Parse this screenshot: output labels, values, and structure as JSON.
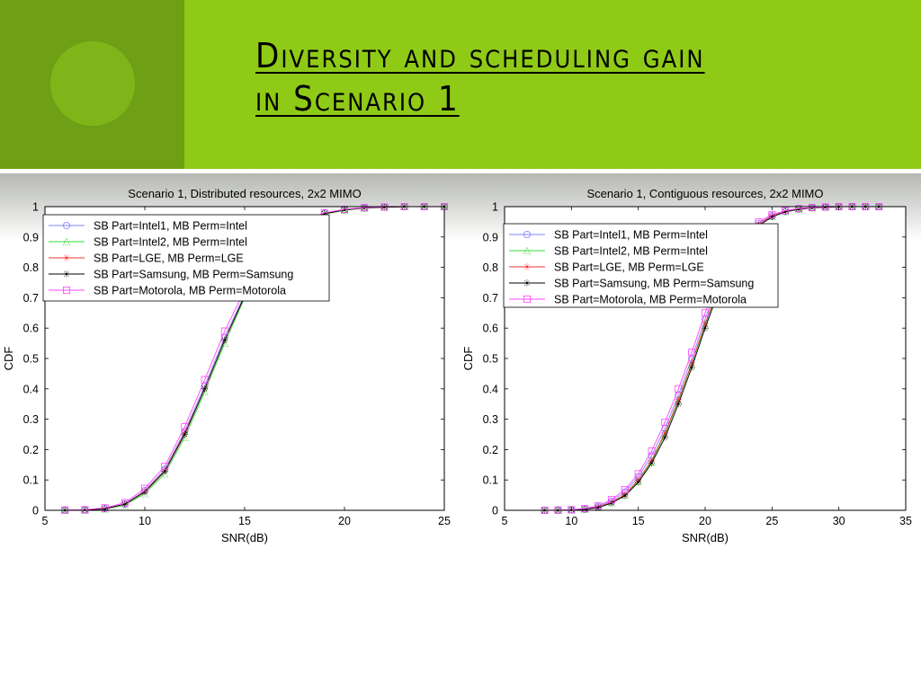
{
  "slide": {
    "title_line1": "Diversity and scheduling gain",
    "title_line2": "in Scenario 1"
  },
  "chart_data": [
    {
      "type": "line",
      "title": "Scenario 1, Distributed resources, 2x2 MIMO",
      "xlabel": "SNR(dB)",
      "ylabel": "CDF",
      "xlim": [
        5,
        25
      ],
      "ylim": [
        0,
        1
      ],
      "xticks": [
        5,
        10,
        15,
        20,
        25
      ],
      "yticks": [
        0,
        0.1,
        0.2,
        0.3,
        0.4,
        0.5,
        0.6,
        0.7,
        0.8,
        0.9,
        1
      ],
      "grid": false,
      "legend_position": "top-left",
      "series": [
        {
          "name": "SB Part=Intel1, MB Perm=Intel",
          "color": "#8080ff",
          "marker": "circle",
          "x": [
            6,
            7,
            8,
            9,
            10,
            11,
            12,
            13,
            14,
            15,
            16,
            17,
            18,
            19,
            20,
            21,
            22,
            23,
            24,
            25
          ],
          "y": [
            0,
            0.001,
            0.006,
            0.021,
            0.065,
            0.135,
            0.26,
            0.41,
            0.57,
            0.71,
            0.82,
            0.9,
            0.95,
            0.978,
            0.99,
            0.996,
            0.998,
            1,
            1,
            1
          ]
        },
        {
          "name": "SB Part=Intel2, MB Perm=Intel",
          "color": "#33dd33",
          "marker": "triangle",
          "x": [
            6,
            7,
            8,
            9,
            10,
            11,
            12,
            13,
            14,
            15,
            16,
            17,
            18,
            19,
            20,
            21,
            22,
            23,
            24,
            25
          ],
          "y": [
            0,
            0,
            0.004,
            0.017,
            0.055,
            0.12,
            0.24,
            0.39,
            0.55,
            0.7,
            0.81,
            0.89,
            0.945,
            0.975,
            0.988,
            0.995,
            0.998,
            1,
            1,
            1
          ]
        },
        {
          "name": "SB Part=LGE, MB Perm=LGE",
          "color": "#ee3333",
          "marker": "star",
          "x": [
            6,
            7,
            8,
            9,
            10,
            11,
            12,
            13,
            14,
            15,
            16,
            17,
            18,
            19,
            20,
            21,
            22,
            23,
            24,
            25
          ],
          "y": [
            0,
            0.001,
            0.005,
            0.02,
            0.062,
            0.13,
            0.255,
            0.4,
            0.56,
            0.705,
            0.815,
            0.895,
            0.948,
            0.977,
            0.989,
            0.996,
            0.998,
            1,
            1,
            1
          ]
        },
        {
          "name": "SB Part=Samsung, MB Perm=Samsung",
          "color": "#000000",
          "marker": "star",
          "x": [
            6,
            7,
            8,
            9,
            10,
            11,
            12,
            13,
            14,
            15,
            16,
            17,
            18,
            19,
            20,
            21,
            22,
            23,
            24,
            25
          ],
          "y": [
            0,
            0.001,
            0.005,
            0.02,
            0.06,
            0.128,
            0.25,
            0.4,
            0.56,
            0.705,
            0.815,
            0.895,
            0.948,
            0.977,
            0.989,
            0.996,
            0.998,
            1,
            1,
            1
          ]
        },
        {
          "name": "SB Part=Motorola, MB Perm=Motorola",
          "color": "#ff44ff",
          "marker": "square",
          "x": [
            6,
            7,
            8,
            9,
            10,
            11,
            12,
            13,
            14,
            15,
            16,
            17,
            18,
            19,
            20,
            21,
            22,
            23,
            24,
            25
          ],
          "y": [
            0.001,
            0.002,
            0.008,
            0.025,
            0.072,
            0.145,
            0.275,
            0.43,
            0.59,
            0.725,
            0.83,
            0.905,
            0.955,
            0.98,
            0.991,
            0.997,
            0.999,
            1,
            1,
            1
          ]
        }
      ]
    },
    {
      "type": "line",
      "title": "Scenario 1, Contiguous resources, 2x2 MIMO",
      "xlabel": "SNR(dB)",
      "ylabel": "CDF",
      "xlim": [
        5,
        35
      ],
      "ylim": [
        0,
        1
      ],
      "xticks": [
        5,
        10,
        15,
        20,
        25,
        30,
        35
      ],
      "yticks": [
        0,
        0.1,
        0.2,
        0.3,
        0.4,
        0.5,
        0.6,
        0.7,
        0.8,
        0.9,
        1
      ],
      "grid": false,
      "legend_position": "top-left",
      "series": [
        {
          "name": "SB Part=Intel1, MB Perm=Intel",
          "color": "#8080ff",
          "marker": "circle",
          "x": [
            8,
            9,
            10,
            11,
            12,
            13,
            14,
            15,
            16,
            17,
            18,
            19,
            20,
            21,
            22,
            23,
            24,
            25,
            26,
            27,
            28,
            29,
            30,
            31,
            32,
            33
          ],
          "y": [
            0,
            0,
            0.001,
            0.004,
            0.012,
            0.03,
            0.06,
            0.11,
            0.18,
            0.27,
            0.38,
            0.5,
            0.63,
            0.75,
            0.84,
            0.9,
            0.945,
            0.97,
            0.985,
            0.993,
            0.997,
            0.999,
            1,
            1,
            1,
            1
          ]
        },
        {
          "name": "SB Part=Intel2, MB Perm=Intel",
          "color": "#33dd33",
          "marker": "triangle",
          "x": [
            8,
            9,
            10,
            11,
            12,
            13,
            14,
            15,
            16,
            17,
            18,
            19,
            20,
            21,
            22,
            23,
            24,
            25,
            26,
            27,
            28,
            29,
            30,
            31,
            32,
            33
          ],
          "y": [
            0,
            0,
            0.001,
            0.003,
            0.01,
            0.025,
            0.05,
            0.095,
            0.16,
            0.25,
            0.36,
            0.48,
            0.61,
            0.73,
            0.83,
            0.895,
            0.94,
            0.968,
            0.984,
            0.992,
            0.996,
            0.998,
            1,
            1,
            1,
            1
          ]
        },
        {
          "name": "SB Part=LGE, MB Perm=LGE",
          "color": "#ee3333",
          "marker": "star",
          "x": [
            8,
            9,
            10,
            11,
            12,
            13,
            14,
            15,
            16,
            17,
            18,
            19,
            20,
            21,
            22,
            23,
            24,
            25,
            26,
            27,
            28,
            29,
            30,
            31,
            32,
            33
          ],
          "y": [
            0,
            0,
            0.001,
            0.003,
            0.01,
            0.026,
            0.052,
            0.1,
            0.165,
            0.255,
            0.365,
            0.485,
            0.615,
            0.735,
            0.832,
            0.897,
            0.941,
            0.969,
            0.984,
            0.992,
            0.996,
            0.998,
            1,
            1,
            1,
            1
          ]
        },
        {
          "name": "SB Part=Samsung, MB Perm=Samsung",
          "color": "#000000",
          "marker": "star",
          "x": [
            8,
            9,
            10,
            11,
            12,
            13,
            14,
            15,
            16,
            17,
            18,
            19,
            20,
            21,
            22,
            23,
            24,
            25,
            26,
            27,
            28,
            29,
            30,
            31,
            32,
            33
          ],
          "y": [
            0,
            0,
            0.001,
            0.003,
            0.009,
            0.024,
            0.048,
            0.092,
            0.155,
            0.24,
            0.35,
            0.47,
            0.6,
            0.72,
            0.82,
            0.89,
            0.937,
            0.966,
            0.983,
            0.991,
            0.996,
            0.998,
            1,
            1,
            1,
            1
          ]
        },
        {
          "name": "SB Part=Motorola, MB Perm=Motorola",
          "color": "#ff44ff",
          "marker": "square",
          "x": [
            8,
            9,
            10,
            11,
            12,
            13,
            14,
            15,
            16,
            17,
            18,
            19,
            20,
            21,
            22,
            23,
            24,
            25,
            26,
            27,
            28,
            29,
            30,
            31,
            32,
            33
          ],
          "y": [
            0,
            0.001,
            0.002,
            0.006,
            0.015,
            0.035,
            0.068,
            0.12,
            0.195,
            0.29,
            0.4,
            0.52,
            0.65,
            0.765,
            0.85,
            0.91,
            0.95,
            0.973,
            0.987,
            0.994,
            0.997,
            0.999,
            1,
            1,
            1,
            1
          ]
        }
      ]
    }
  ]
}
